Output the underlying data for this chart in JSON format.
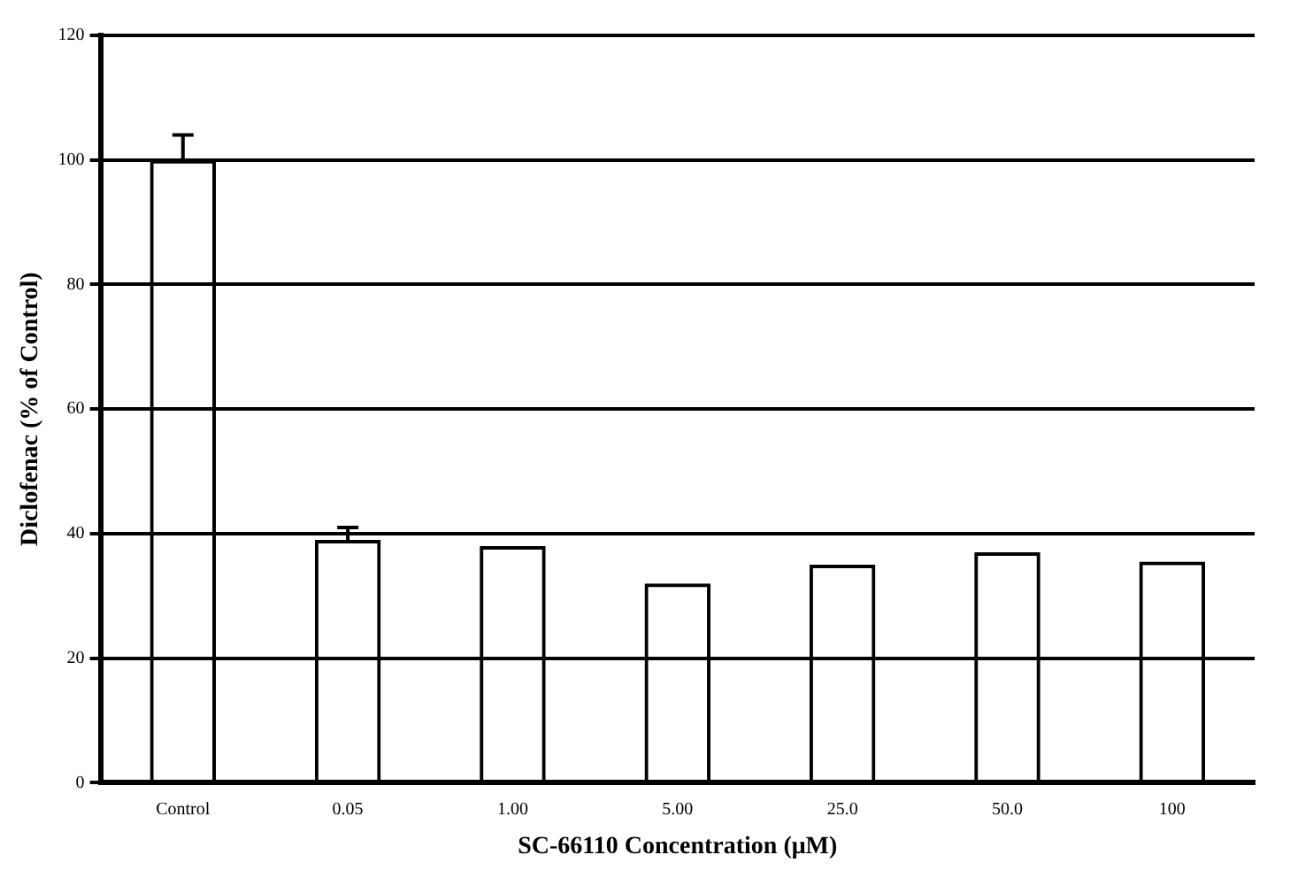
{
  "chart_data": {
    "type": "bar",
    "xlabel": "SC-66110 Concentration (μM)",
    "ylabel": "Diclofenac (% of Control)",
    "categories": [
      "Control",
      "0.05",
      "1.00",
      "5.00",
      "25.0",
      "50.0",
      "100"
    ],
    "values": [
      100,
      39,
      38,
      32,
      35,
      37,
      35.5
    ],
    "errors": [
      4,
      2,
      null,
      null,
      null,
      null,
      null
    ],
    "color": "#000000",
    "ylim": [
      0,
      120
    ],
    "yticks": [
      0,
      20,
      40,
      60,
      80,
      100,
      120
    ],
    "grid": "y"
  }
}
